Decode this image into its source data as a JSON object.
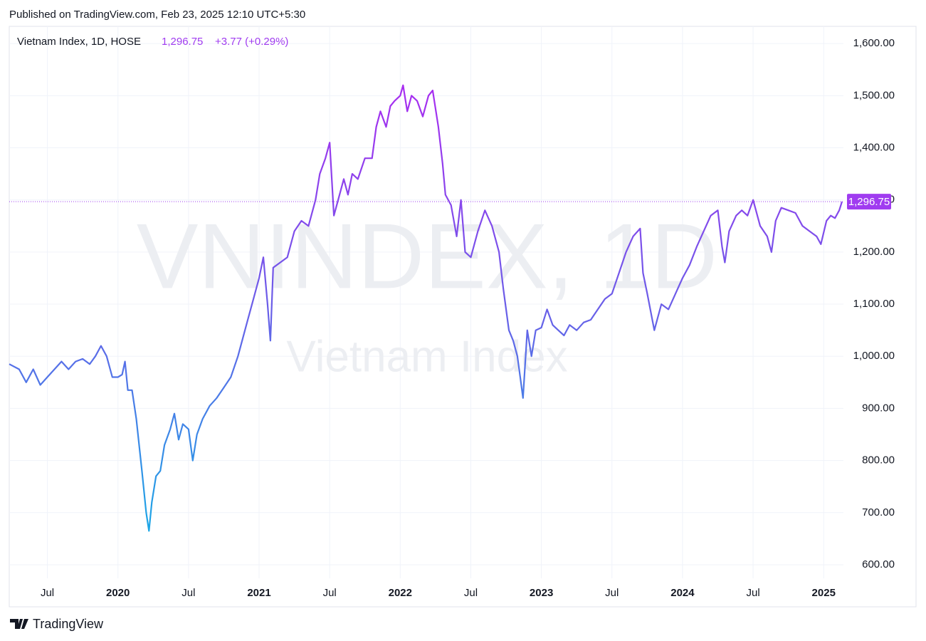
{
  "chart_data": {
    "type": "line",
    "published": "Published on TradingView.com, Feb 23, 2025 12:10 UTC+5:30",
    "title": "Vietnam Index, 1D, HOSE",
    "price": "1,296.75",
    "change": "+3.77 (+0.29%)",
    "watermark": "VNINDEX, 1D",
    "brand": "TradingView",
    "gradient": [
      "#a92cf0",
      "#6a5ee8",
      "#1aa8e6"
    ],
    "grid": true,
    "xlim": [
      2019.23,
      2025.14
    ],
    "ylim": [
      574,
      1633
    ],
    "xticks": [
      {
        "value": 2019.5,
        "label": "Jul"
      },
      2020,
      {
        "value": 2020.5,
        "label": "Jul"
      },
      2021,
      {
        "value": 2021.5,
        "label": "Jul"
      },
      2022,
      {
        "value": 2022.5,
        "label": "Jul"
      },
      2023,
      {
        "value": 2023.5,
        "label": "Jul"
      },
      2024,
      {
        "value": 2024.5,
        "label": "Jul"
      },
      2025
    ],
    "yticks": [
      {
        "value": 600,
        "label": "600.00"
      },
      {
        "value": 700,
        "label": "700.00"
      },
      {
        "value": 800,
        "label": "800.00"
      },
      {
        "value": 900,
        "label": "900.00"
      },
      {
        "value": 1000,
        "label": "1,000.00"
      },
      {
        "value": 1100,
        "label": "1,100.00"
      },
      {
        "value": 1200,
        "label": "1,200.00"
      },
      {
        "value": 1300,
        "label": "1,300.00"
      },
      {
        "value": 1400,
        "label": "1,400.00"
      },
      {
        "value": 1500,
        "label": "1,500.00"
      },
      {
        "value": 1600,
        "label": "1,600.00"
      }
    ],
    "x": [
      2019.23,
      2019.3,
      2019.35,
      2019.4,
      2019.45,
      2019.5,
      2019.55,
      2019.6,
      2019.65,
      2019.7,
      2019.75,
      2019.8,
      2019.84,
      2019.88,
      2019.92,
      2019.96,
      2020.0,
      2020.03,
      2020.05,
      2020.07,
      2020.1,
      2020.13,
      2020.17,
      2020.2,
      2020.22,
      2020.24,
      2020.27,
      2020.3,
      2020.33,
      2020.37,
      2020.4,
      2020.43,
      2020.46,
      2020.5,
      2020.53,
      2020.56,
      2020.6,
      2020.65,
      2020.7,
      2020.75,
      2020.8,
      2020.85,
      2020.88,
      2020.92,
      2020.96,
      2021.0,
      2021.03,
      2021.06,
      2021.08,
      2021.1,
      2021.15,
      2021.2,
      2021.25,
      2021.3,
      2021.35,
      2021.4,
      2021.43,
      2021.47,
      2021.5,
      2021.53,
      2021.56,
      2021.6,
      2021.63,
      2021.66,
      2021.7,
      2021.75,
      2021.8,
      2021.83,
      2021.86,
      2021.9,
      2021.93,
      2021.96,
      2022.0,
      2022.02,
      2022.05,
      2022.08,
      2022.12,
      2022.16,
      2022.2,
      2022.23,
      2022.27,
      2022.3,
      2022.32,
      2022.36,
      2022.4,
      2022.43,
      2022.46,
      2022.5,
      2022.55,
      2022.6,
      2022.65,
      2022.7,
      2022.73,
      2022.77,
      2022.8,
      2022.83,
      2022.85,
      2022.87,
      2022.9,
      2022.93,
      2022.96,
      2023.0,
      2023.04,
      2023.08,
      2023.12,
      2023.16,
      2023.2,
      2023.25,
      2023.3,
      2023.35,
      2023.4,
      2023.45,
      2023.5,
      2023.55,
      2023.6,
      2023.65,
      2023.7,
      2023.72,
      2023.75,
      2023.8,
      2023.85,
      2023.9,
      2023.95,
      2024.0,
      2024.05,
      2024.1,
      2024.15,
      2024.2,
      2024.25,
      2024.28,
      2024.3,
      2024.33,
      2024.38,
      2024.42,
      2024.46,
      2024.5,
      2024.55,
      2024.6,
      2024.63,
      2024.66,
      2024.7,
      2024.75,
      2024.8,
      2024.85,
      2024.9,
      2024.95,
      2024.98,
      2025.02,
      2025.05,
      2025.08,
      2025.11,
      2025.13
    ],
    "series": [
      {
        "name": "Vietnam Index",
        "color": "#a03cf0",
        "values": [
          985,
          975,
          950,
          975,
          945,
          960,
          975,
          990,
          975,
          990,
          995,
          985,
          1000,
          1020,
          1000,
          960,
          960,
          965,
          990,
          935,
          935,
          880,
          780,
          700,
          665,
          720,
          770,
          780,
          830,
          860,
          890,
          840,
          870,
          860,
          800,
          850,
          880,
          905,
          920,
          940,
          960,
          1000,
          1030,
          1070,
          1110,
          1150,
          1190,
          1100,
          1030,
          1170,
          1180,
          1190,
          1240,
          1260,
          1250,
          1300,
          1350,
          1380,
          1410,
          1270,
          1300,
          1340,
          1310,
          1350,
          1340,
          1380,
          1380,
          1440,
          1470,
          1440,
          1480,
          1490,
          1500,
          1520,
          1470,
          1500,
          1490,
          1460,
          1500,
          1510,
          1440,
          1370,
          1310,
          1290,
          1230,
          1300,
          1200,
          1190,
          1240,
          1280,
          1250,
          1200,
          1130,
          1050,
          1030,
          1000,
          960,
          920,
          1050,
          1000,
          1050,
          1055,
          1090,
          1060,
          1050,
          1040,
          1060,
          1050,
          1065,
          1070,
          1090,
          1110,
          1120,
          1160,
          1200,
          1230,
          1245,
          1160,
          1120,
          1050,
          1100,
          1090,
          1120,
          1150,
          1175,
          1210,
          1240,
          1270,
          1280,
          1210,
          1180,
          1240,
          1270,
          1280,
          1270,
          1300,
          1250,
          1230,
          1200,
          1260,
          1285,
          1280,
          1275,
          1250,
          1240,
          1230,
          1215,
          1260,
          1270,
          1265,
          1280,
          1296.75
        ]
      }
    ]
  }
}
